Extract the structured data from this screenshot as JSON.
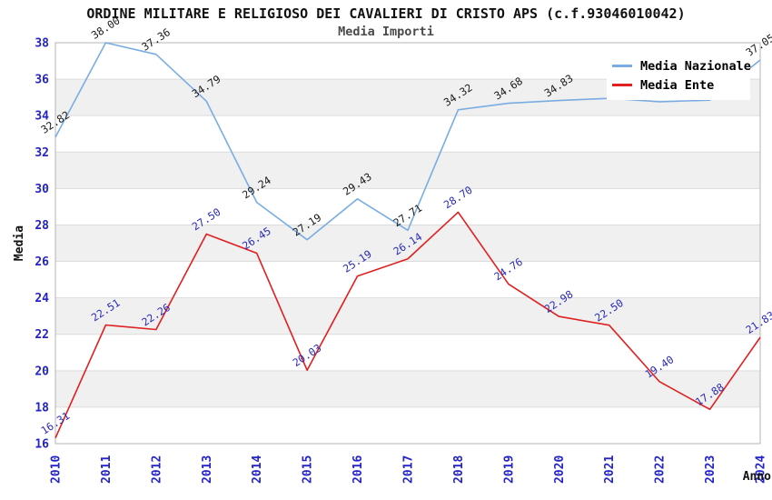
{
  "title": "ORDINE MILITARE E RELIGIOSO DEI CAVALIERI DI CRISTO APS (c.f.93046010042)",
  "subtitle": "Media Importi",
  "legend": {
    "items": [
      {
        "label": "Media Nazionale",
        "color": "#79ade2"
      },
      {
        "label": "Media Ente",
        "color": "#e02020"
      }
    ]
  },
  "colors": {
    "tick_label": "#2323c8",
    "grid_line": "#dcdcdc",
    "band_gray": "#f0f0f0",
    "plot_border": "#b4b4b4",
    "axis_title": "#111111"
  },
  "chart_data": {
    "type": "line",
    "title": "ORDINE MILITARE E RELIGIOSO DEI CAVALIERI DI CRISTO APS (c.f.93046010042)",
    "subtitle": "Media Importi",
    "xlabel": "Anno",
    "ylabel": "Media",
    "ylim": [
      16,
      38
    ],
    "ytick_step": 2,
    "grid": "horizontal-bands",
    "legend_position": "top-right-inside",
    "x": [
      "2010",
      "2011",
      "2012",
      "2013",
      "2014",
      "2015",
      "2016",
      "2017",
      "2018",
      "2019",
      "2020",
      "2021",
      "2022",
      "2023",
      "2024"
    ],
    "series": [
      {
        "name": "Media Nazionale",
        "color": "#79ade2",
        "label_color": "#1a1a1a",
        "values": [
          32.82,
          38.0,
          37.36,
          34.79,
          29.24,
          27.19,
          29.43,
          27.71,
          34.32,
          34.68,
          34.83,
          34.95,
          34.76,
          34.85,
          37.05
        ],
        "labels": [
          "32.82",
          "38.00",
          "37.36",
          "34.79",
          "29.24",
          "27.19",
          "29.43",
          "27.71",
          "34.32",
          "34.68",
          "34.83",
          null,
          null,
          null,
          "37.05"
        ],
        "note": "2021-2023 labels hidden behind legend box; values estimated from line position"
      },
      {
        "name": "Media Ente",
        "color": "#e02020",
        "label_color": "#2a2ab8",
        "values": [
          16.31,
          22.51,
          22.26,
          27.5,
          26.45,
          20.03,
          25.19,
          26.14,
          28.7,
          24.76,
          22.98,
          22.5,
          19.4,
          17.88,
          21.83
        ],
        "labels": [
          "16.31",
          "22.51",
          "22.26",
          "27.50",
          "26.45",
          "20.03",
          "25.19",
          "26.14",
          "28.70",
          "24.76",
          "22.98",
          "22.50",
          "19.40",
          "17.88",
          "21.83"
        ]
      }
    ]
  }
}
